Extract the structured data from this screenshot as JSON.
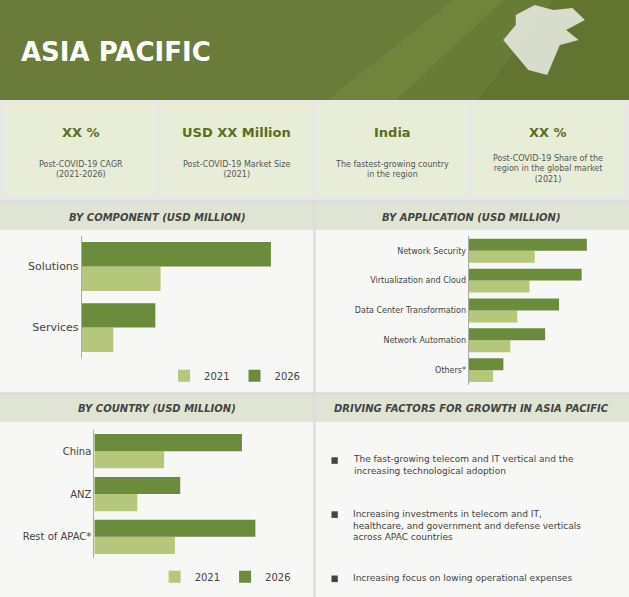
{
  "title": "ASIA PACIFIC",
  "annotations": [
    {
      "title": "XX %",
      "text": "Post-COVID-19 CAGR\n(2021-2026)"
    },
    {
      "title": "USD XX Million",
      "text": "Post-COVID-19 Market Size\n(2021)"
    },
    {
      "title": "India",
      "text": "The fastest-growing country\nin the region"
    },
    {
      "title": "XX %",
      "text": "Post-COVID-19 Share of the\nregion in the global market\n(2021)"
    },
    {
      "title": "DRIVING FACTORS FOR GROWTH IN ASIA PACIFIC",
      "items": [
        "The fast-growing telecom and IT vertical and the\nincreasing technological adoption",
        "Increasing investments in telecom and IT,\nhealthcare, and government and defense verticals\nacross APAC countries",
        "Increasing focus on lowing operational expenses"
      ]
    }
  ],
  "chart_data": [
    {
      "type": "bar",
      "orientation": "horizontal",
      "title": "BY COMPONENT (USD MILLION)",
      "categories": [
        "Services",
        "Solutions"
      ],
      "series": [
        {
          "name": "2021",
          "color": "#b5c77a",
          "values": [
            12,
            30
          ]
        },
        {
          "name": "2026",
          "color": "#6b8c3a",
          "values": [
            28,
            72
          ]
        }
      ],
      "xlim": [
        0,
        85
      ],
      "tick_labels": "y",
      "grid": false,
      "legend": "lower right"
    },
    {
      "type": "bar",
      "orientation": "horizontal",
      "title": "BY APPLICATION (USD MILLION)",
      "categories": [
        "Others*",
        "Network Automation",
        "Data Center Transformation",
        "Virtualization and Cloud",
        "Network Security"
      ],
      "series": [
        {
          "name": "2021",
          "color": "#b5c77a",
          "values": [
            14,
            24,
            28,
            35,
            38
          ]
        },
        {
          "name": "2026",
          "color": "#6b8c3a",
          "values": [
            20,
            44,
            52,
            65,
            68
          ]
        }
      ],
      "xlim": [
        0,
        85
      ],
      "tick_labels": "y",
      "grid": false
    },
    {
      "type": "bar",
      "orientation": "horizontal",
      "title": "BY COUNTRY (USD MILLION)",
      "categories": [
        "Rest of APAC*",
        "ANZ",
        "China"
      ],
      "series": [
        {
          "name": "2021",
          "color": "#b5c77a",
          "values": [
            30,
            16,
            26
          ]
        },
        {
          "name": "2026",
          "color": "#6b8c3a",
          "values": [
            60,
            32,
            55
          ]
        }
      ],
      "xlim": [
        0,
        75
      ],
      "tick_labels": "y",
      "grid": false,
      "legend": "lower right"
    }
  ]
}
